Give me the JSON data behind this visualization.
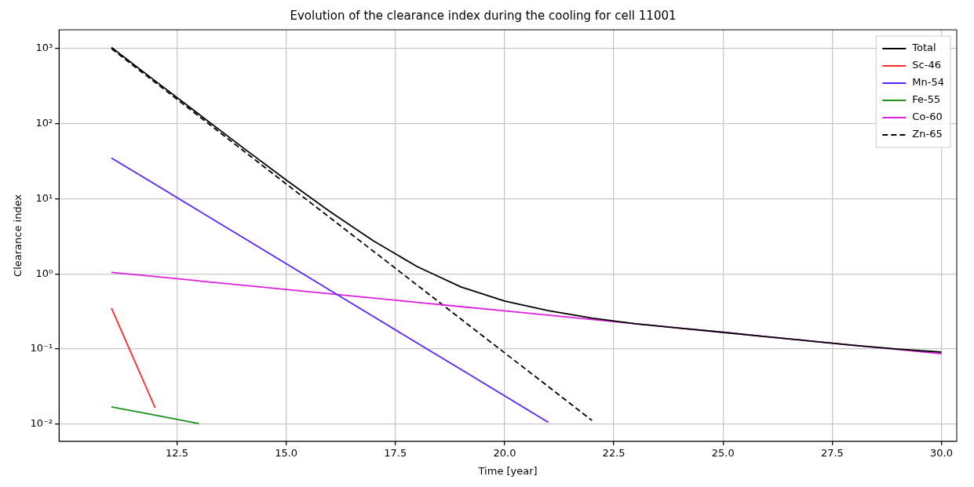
{
  "chart_data": {
    "type": "line",
    "title": "Evolution of the clearance index during the cooling for cell 11001",
    "xlabel": "Time [year]",
    "ylabel": "Clearance index",
    "log": "y",
    "grid": true,
    "legend": "top right",
    "marker": "none",
    "xlim": [
      9.8,
      30.35
    ],
    "xticks": [
      12.5,
      {
        "value": 15,
        "label": "15.0"
      },
      17.5,
      {
        "value": 20,
        "label": "20.0"
      },
      22.5,
      {
        "value": 25,
        "label": "25.0"
      },
      27.5,
      {
        "value": 30,
        "label": "30.0"
      }
    ],
    "ylim": [
      0.0059,
      1780
    ],
    "yticks": [
      {
        "value": 0.01,
        "label": "10⁻²"
      },
      {
        "value": 0.1,
        "label": "10⁻¹"
      },
      {
        "value": 1,
        "label": "10⁰"
      },
      {
        "value": 10,
        "label": "10¹"
      },
      {
        "value": 100,
        "label": "10²"
      },
      {
        "value": 1000,
        "label": "10³"
      }
    ],
    "series": [
      {
        "name": "Total",
        "color": "#000000",
        "line_style": "solid",
        "x": [
          11,
          12,
          13,
          14,
          15,
          16,
          17,
          18,
          19,
          20,
          21,
          22,
          23,
          24,
          25,
          26,
          27,
          28,
          29,
          30
        ],
        "values": [
          1036,
          372,
          134,
          48.5,
          17.8,
          6.77,
          2.75,
          1.25,
          0.672,
          0.435,
          0.324,
          0.258,
          0.217,
          0.19,
          0.167,
          0.146,
          0.128,
          0.112,
          0.1,
          0.091
        ]
      },
      {
        "name": "Sc-46",
        "color": "#ff2a2a",
        "line_style": "solid",
        "x": [
          11,
          12
        ],
        "values": [
          0.35,
          0.0165
        ]
      },
      {
        "name": "Mn-54",
        "color": "#5a22ff",
        "line_style": "solid",
        "x": [
          11,
          12,
          13,
          14,
          15,
          16,
          17,
          18,
          19,
          20,
          21
        ],
        "values": [
          35,
          15.6,
          6.92,
          3.08,
          1.37,
          0.608,
          0.27,
          0.12,
          0.0535,
          0.0238,
          0.0106
        ]
      },
      {
        "name": "Fe-55",
        "color": "#1a931a",
        "line_style": "solid",
        "x": [
          11,
          12,
          13
        ],
        "values": [
          0.017,
          0.0132,
          0.0102
        ]
      },
      {
        "name": "Co-60",
        "color": "#dd22dd",
        "line_style": "solid",
        "x": [
          11,
          12,
          13,
          14,
          15,
          16,
          17,
          18,
          19,
          20,
          21,
          22,
          23,
          24,
          25,
          26,
          27,
          28,
          29,
          30
        ],
        "values": [
          1.05,
          0.921,
          0.807,
          0.708,
          0.621,
          0.544,
          0.477,
          0.418,
          0.367,
          0.322,
          0.282,
          0.247,
          0.217,
          0.19,
          0.167,
          0.146,
          0.128,
          0.112,
          0.0985,
          0.0864
        ]
      },
      {
        "name": "Zn-65",
        "color": "#000000",
        "line_style": "dashed",
        "x": [
          11,
          12,
          13,
          14,
          15,
          16,
          17,
          18,
          19,
          20,
          21,
          22
        ],
        "values": [
          1000,
          355,
          126,
          44.7,
          15.8,
          5.62,
          2.0,
          0.708,
          0.251,
          0.0891,
          0.0316,
          0.0112
        ]
      }
    ]
  }
}
